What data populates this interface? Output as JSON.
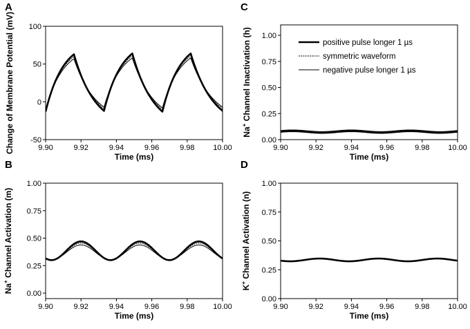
{
  "chart_data": [
    {
      "type": "line",
      "panel": "A",
      "xlabel": "Time (ms)",
      "ylabel": "Change of Membrane Potential (mV)",
      "xlim": [
        9.9,
        10.0
      ],
      "ylim": [
        -50,
        100
      ],
      "xticks": [
        "9.90",
        "9.92",
        "9.94",
        "9.96",
        "9.98",
        "10.00"
      ],
      "yticks": [
        "-50",
        "0",
        "50",
        "100"
      ],
      "series": [
        {
          "name": "positive pulse longer 1 µs",
          "x": [
            9.9,
            9.916,
            9.933,
            9.949,
            9.966,
            9.982,
            10.0
          ],
          "y": [
            -13,
            63,
            -12,
            64,
            -13,
            64,
            -12
          ]
        },
        {
          "name": "symmetric waveform",
          "x": [
            9.9,
            9.916,
            9.933,
            9.949,
            9.966,
            9.982,
            10.0
          ],
          "y": [
            -11,
            60,
            -9,
            61,
            -10,
            61,
            -9
          ]
        },
        {
          "name": "negative pulse longer 1 µs",
          "x": [
            9.9,
            9.916,
            9.933,
            9.949,
            9.966,
            9.982,
            10.0
          ],
          "y": [
            -10,
            57,
            -7,
            58,
            -8,
            58,
            -7
          ]
        }
      ]
    },
    {
      "type": "line",
      "panel": "B",
      "xlabel": "Time (ms)",
      "ylabel": "Na+ Channel Activation (m)",
      "xlim": [
        9.9,
        10.0
      ],
      "ylim": [
        -0.05,
        1.0
      ],
      "xticks": [
        "9.90",
        "9.92",
        "9.94",
        "9.96",
        "9.98",
        "10.00"
      ],
      "yticks": [
        "0.00",
        "0.25",
        "0.50",
        "0.75",
        "1.00"
      ],
      "series": [
        {
          "name": "positive pulse longer 1 µs",
          "mean": 0.385,
          "amplitude": 0.085,
          "period_ms": 0.0333,
          "peak_time_ms": 9.92
        },
        {
          "name": "symmetric waveform",
          "mean": 0.378,
          "amplitude": 0.077,
          "period_ms": 0.0333,
          "peak_time_ms": 9.92
        },
        {
          "name": "negative pulse longer 1 µs",
          "mean": 0.37,
          "amplitude": 0.068,
          "period_ms": 0.0333,
          "peak_time_ms": 9.92
        }
      ]
    },
    {
      "type": "line",
      "panel": "C",
      "xlabel": "Time (ms)",
      "ylabel": "Na+ Channel Inactivation (h)",
      "xlim": [
        9.9,
        10.0
      ],
      "ylim": [
        0.0,
        1.1
      ],
      "xticks": [
        "9.90",
        "9.92",
        "9.94",
        "9.96",
        "9.98",
        "10.00"
      ],
      "yticks": [
        "0.00",
        "0.25",
        "0.50",
        "0.75",
        "1.00"
      ],
      "legend": {
        "position": "top-right",
        "entries": [
          "positive pulse longer 1 µs",
          "symmetric waveform",
          "negative pulse longer 1 µs"
        ]
      },
      "series": [
        {
          "name": "positive pulse longer 1 µs",
          "mean": 0.073,
          "amplitude": 0.008,
          "period_ms": 0.0333,
          "peak_time_ms": 9.94
        },
        {
          "name": "symmetric waveform",
          "mean": 0.079,
          "amplitude": 0.008,
          "period_ms": 0.0333,
          "peak_time_ms": 9.94
        },
        {
          "name": "negative pulse longer 1 µs",
          "mean": 0.085,
          "amplitude": 0.008,
          "period_ms": 0.0333,
          "peak_time_ms": 9.94
        }
      ]
    },
    {
      "type": "line",
      "panel": "D",
      "xlabel": "Time (ms)",
      "ylabel": "K+ Channel Activation (n)",
      "xlim": [
        9.9,
        10.0
      ],
      "ylim": [
        0.0,
        1.0
      ],
      "xticks": [
        "9.90",
        "9.92",
        "9.94",
        "9.96",
        "9.98",
        "10.00"
      ],
      "yticks": [
        "0.00",
        "0.25",
        "0.50",
        "0.75",
        "1.00"
      ],
      "series": [
        {
          "name": "positive pulse longer 1 µs",
          "mean": 0.335,
          "amplitude": 0.012,
          "period_ms": 0.0333,
          "peak_time_ms": 9.922
        },
        {
          "name": "symmetric waveform",
          "mean": 0.335,
          "amplitude": 0.012,
          "period_ms": 0.0333,
          "peak_time_ms": 9.922
        },
        {
          "name": "negative pulse longer 1 µs",
          "mean": 0.335,
          "amplitude": 0.012,
          "period_ms": 0.0333,
          "peak_time_ms": 9.922
        }
      ]
    }
  ],
  "series_styles": {
    "positive pulse longer 1 µs": {
      "color": "#000000",
      "width": 2.6,
      "dash": ""
    },
    "symmetric waveform": {
      "color": "#000000",
      "width": 1.0,
      "dash": "2,1.2"
    },
    "negative pulse longer 1 µs": {
      "color": "#000000",
      "width": 1.0,
      "dash": ""
    }
  }
}
